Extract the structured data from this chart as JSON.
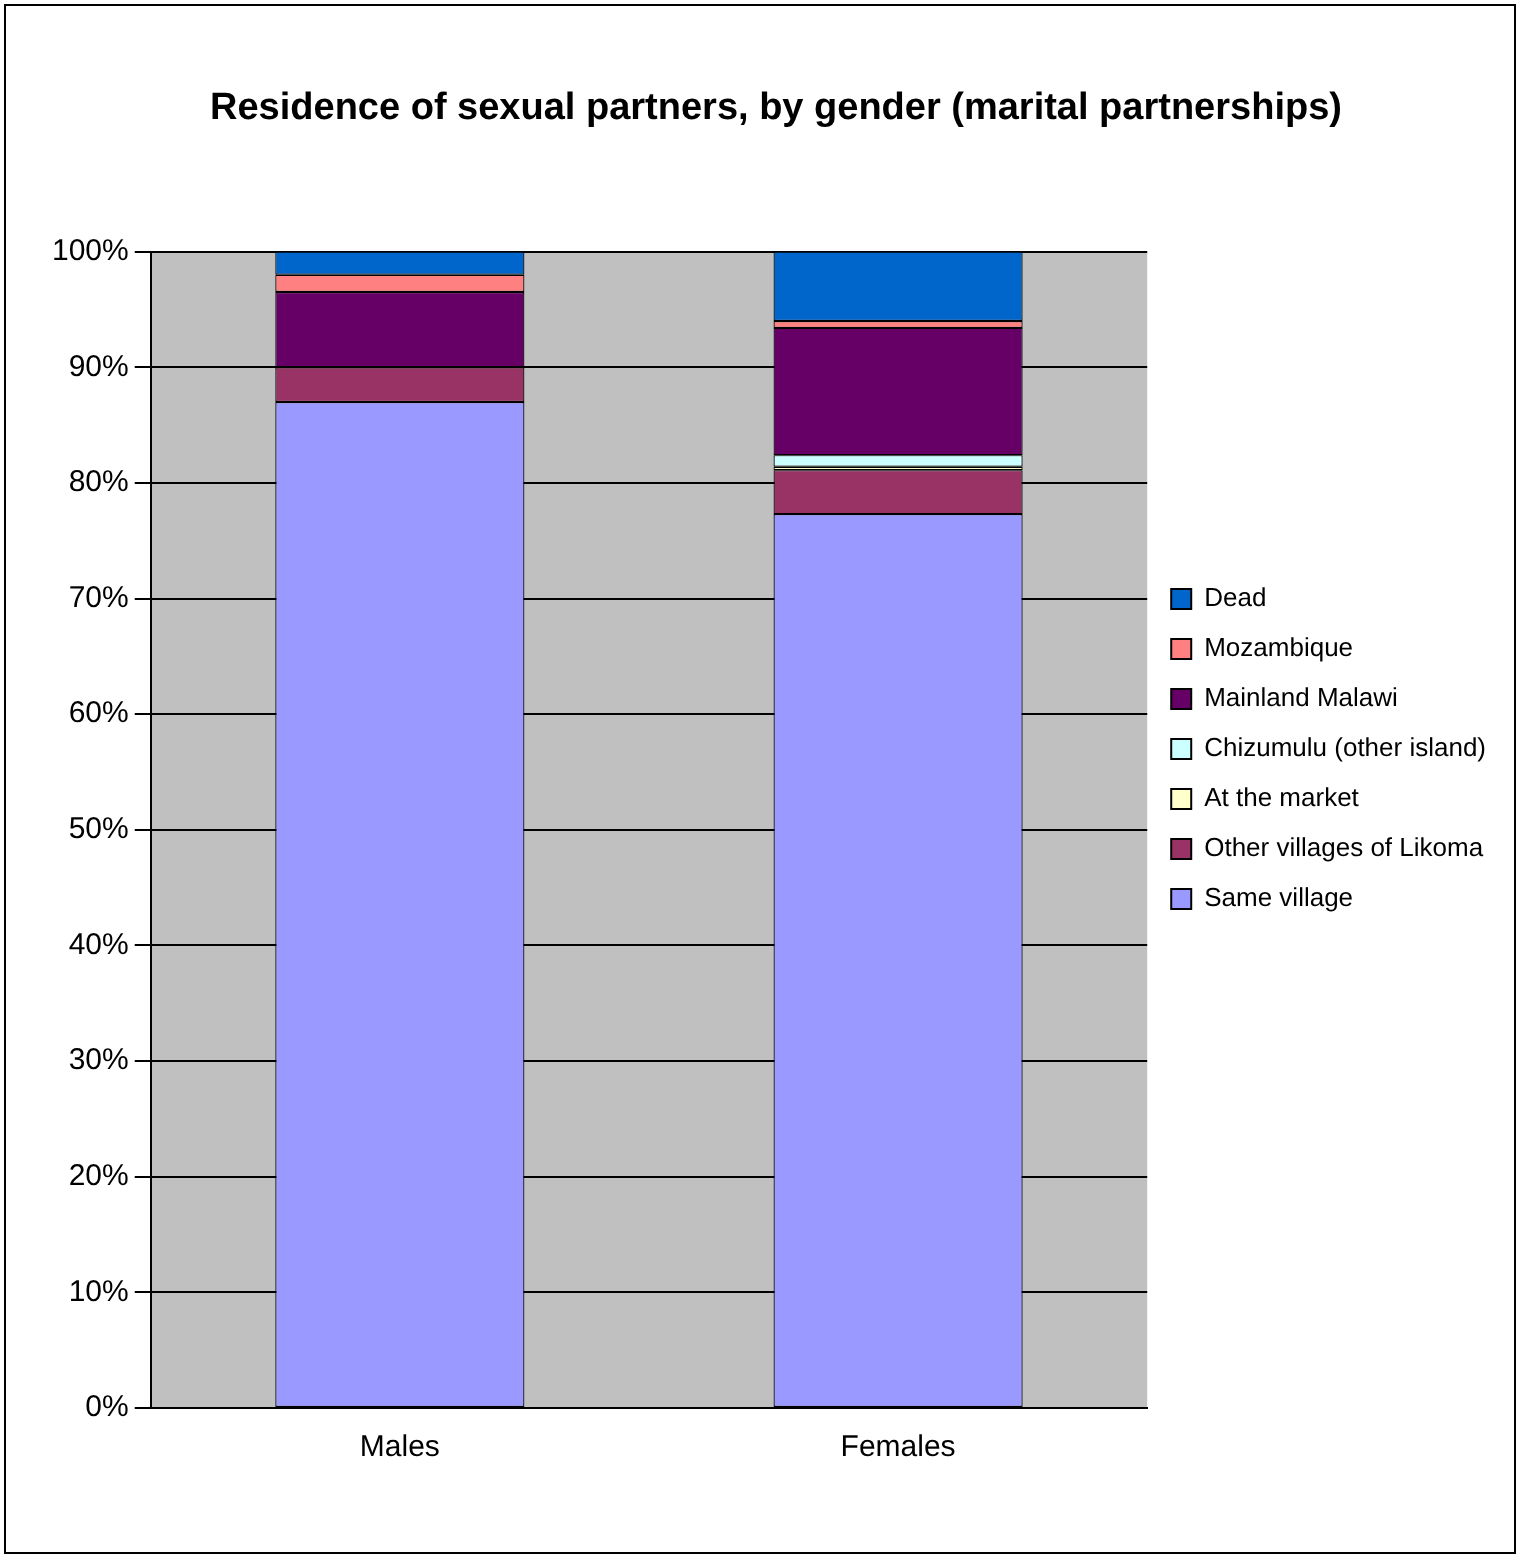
{
  "chart_data": {
    "type": "bar",
    "title": "Residence of sexual partners, by gender (marital partnerships)",
    "categories": [
      "Males",
      "Females"
    ],
    "stacked": true,
    "ylim": [
      0,
      100
    ],
    "yticks": [
      {
        "value": 0,
        "label": "0%"
      },
      {
        "value": 10,
        "label": "10%"
      },
      {
        "value": 20,
        "label": "20%"
      },
      {
        "value": 30,
        "label": "30%"
      },
      {
        "value": 40,
        "label": "40%"
      },
      {
        "value": 50,
        "label": "50%"
      },
      {
        "value": 60,
        "label": "60%"
      },
      {
        "value": 70,
        "label": "70%"
      },
      {
        "value": 80,
        "label": "80%"
      },
      {
        "value": 90,
        "label": "90%"
      },
      {
        "value": 100,
        "label": "100%"
      }
    ],
    "grid": "y",
    "legend": "right",
    "series": [
      {
        "name": "Same village",
        "color": "#9999ff",
        "values": [
          87,
          77.3
        ]
      },
      {
        "name": "Other villages of Likoma",
        "color": "#993366",
        "values": [
          3,
          3.8
        ]
      },
      {
        "name": "At the market",
        "color": "#ffffcc",
        "values": [
          0,
          0.3
        ]
      },
      {
        "name": "Chizumulu (other island)",
        "color": "#ccffff",
        "values": [
          0,
          1
        ]
      },
      {
        "name": "Mainland Malawi",
        "color": "#660066",
        "values": [
          6.5,
          11
        ]
      },
      {
        "name": "Mozambique",
        "color": "#ff8080",
        "values": [
          1.5,
          0.6
        ]
      },
      {
        "name": "Dead",
        "color": "#0066cc",
        "values": [
          2,
          6
        ]
      }
    ]
  }
}
